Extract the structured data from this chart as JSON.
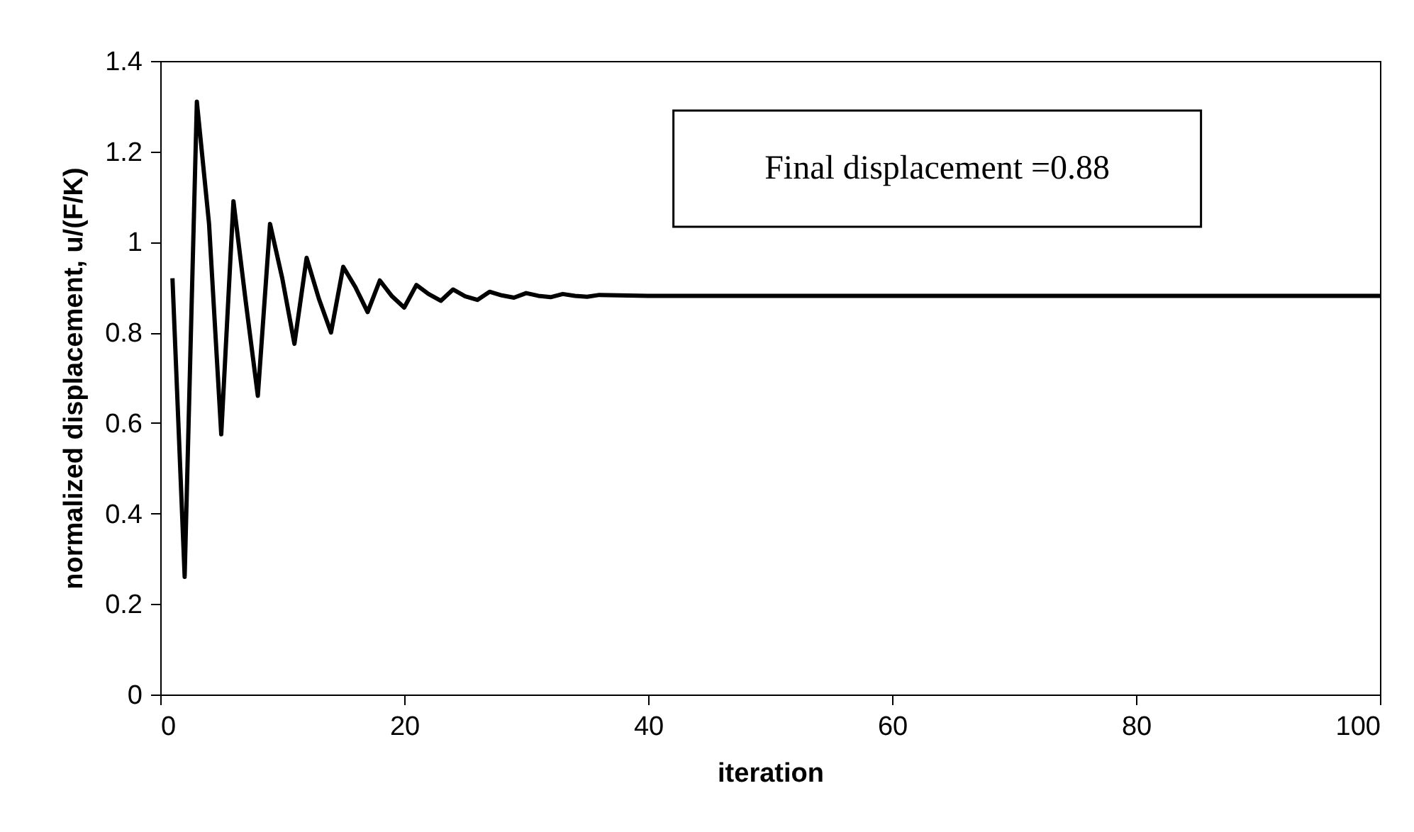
{
  "chart_data": {
    "type": "line",
    "xlabel": "iteration",
    "ylabel": "normalized displacement, u/(F/K)",
    "annotations": [
      "Final displacement =0.88"
    ],
    "x": [
      1,
      2,
      3,
      4,
      5,
      6,
      7,
      8,
      9,
      10,
      11,
      12,
      13,
      14,
      15,
      16,
      17,
      18,
      19,
      20,
      21,
      22,
      23,
      24,
      25,
      26,
      27,
      28,
      29,
      30,
      31,
      32,
      33,
      34,
      35,
      36,
      40,
      50,
      60,
      70,
      80,
      90,
      100
    ],
    "series": [
      {
        "color": "#000000",
        "values": [
          0.92,
          0.26,
          1.31,
          1.04,
          0.575,
          1.09,
          0.87,
          0.66,
          1.04,
          0.92,
          0.775,
          0.965,
          0.875,
          0.8,
          0.945,
          0.9,
          0.845,
          0.915,
          0.88,
          0.855,
          0.905,
          0.885,
          0.87,
          0.895,
          0.88,
          0.872,
          0.89,
          0.882,
          0.877,
          0.887,
          0.881,
          0.878,
          0.885,
          0.881,
          0.879,
          0.883,
          0.881,
          0.881,
          0.881,
          0.881,
          0.881,
          0.881,
          0.881
        ]
      }
    ],
    "xlim": [
      0,
      100
    ],
    "xticks": [
      0,
      20,
      40,
      60,
      80,
      100
    ],
    "ylim": [
      0,
      1.4
    ],
    "yticks": [
      0,
      0.2,
      0.4,
      0.6,
      0.8,
      1,
      1.2,
      1.4
    ],
    "grid": false,
    "marker": "none",
    "line_style": "solid"
  }
}
